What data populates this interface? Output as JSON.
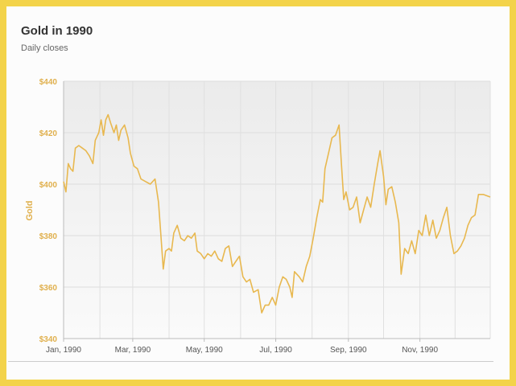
{
  "chart_data": {
    "type": "line",
    "title": "Gold in 1990",
    "subtitle": "Daily closes",
    "ylabel": "Gold",
    "xlabel": "",
    "ylim": [
      340,
      440
    ],
    "y_ticks": [
      340,
      360,
      380,
      400,
      420,
      440
    ],
    "y_tick_labels": [
      "$340",
      "$360",
      "$380",
      "$400",
      "$420",
      "$440"
    ],
    "x_ticks": [
      "Jan, 1990",
      "Mar, 1990",
      "May, 1990",
      "Jul, 1990",
      "Sep, 1990",
      "Nov, 1990"
    ],
    "x_range": [
      "1990-01-01",
      "1990-12-31"
    ],
    "grid": true,
    "line_color": "#e8b84f",
    "series": [
      {
        "name": "",
        "points": [
          [
            "1990-01-01",
            401
          ],
          [
            "1990-01-03",
            397
          ],
          [
            "1990-01-05",
            408
          ],
          [
            "1990-01-07",
            406
          ],
          [
            "1990-01-09",
            405
          ],
          [
            "1990-01-11",
            414
          ],
          [
            "1990-01-14",
            415
          ],
          [
            "1990-01-17",
            414
          ],
          [
            "1990-01-20",
            413
          ],
          [
            "1990-01-23",
            411
          ],
          [
            "1990-01-26",
            408
          ],
          [
            "1990-01-28",
            417
          ],
          [
            "1990-01-31",
            420
          ],
          [
            "1990-02-02",
            425
          ],
          [
            "1990-02-04",
            419
          ],
          [
            "1990-02-06",
            425
          ],
          [
            "1990-02-08",
            427
          ],
          [
            "1990-02-10",
            424
          ],
          [
            "1990-02-13",
            420
          ],
          [
            "1990-02-15",
            423
          ],
          [
            "1990-02-17",
            417
          ],
          [
            "1990-02-19",
            421
          ],
          [
            "1990-02-22",
            423
          ],
          [
            "1990-02-25",
            418
          ],
          [
            "1990-02-27",
            412
          ],
          [
            "1990-03-02",
            407
          ],
          [
            "1990-03-05",
            406
          ],
          [
            "1990-03-08",
            402
          ],
          [
            "1990-03-12",
            401
          ],
          [
            "1990-03-16",
            400
          ],
          [
            "1990-03-20",
            402
          ],
          [
            "1990-03-23",
            393
          ],
          [
            "1990-03-25",
            380
          ],
          [
            "1990-03-27",
            367
          ],
          [
            "1990-03-29",
            374
          ],
          [
            "1990-04-01",
            375
          ],
          [
            "1990-04-03",
            374
          ],
          [
            "1990-04-05",
            381
          ],
          [
            "1990-04-08",
            384
          ],
          [
            "1990-04-11",
            379
          ],
          [
            "1990-04-14",
            378
          ],
          [
            "1990-04-17",
            380
          ],
          [
            "1990-04-20",
            379
          ],
          [
            "1990-04-23",
            381
          ],
          [
            "1990-04-25",
            374
          ],
          [
            "1990-04-28",
            373
          ],
          [
            "1990-05-01",
            371
          ],
          [
            "1990-05-04",
            373
          ],
          [
            "1990-05-07",
            372
          ],
          [
            "1990-05-10",
            374
          ],
          [
            "1990-05-13",
            371
          ],
          [
            "1990-05-16",
            370
          ],
          [
            "1990-05-19",
            375
          ],
          [
            "1990-05-22",
            376
          ],
          [
            "1990-05-25",
            368
          ],
          [
            "1990-05-28",
            370
          ],
          [
            "1990-05-31",
            372
          ],
          [
            "1990-06-03",
            364
          ],
          [
            "1990-06-06",
            362
          ],
          [
            "1990-06-09",
            363
          ],
          [
            "1990-06-12",
            358
          ],
          [
            "1990-06-16",
            359
          ],
          [
            "1990-06-19",
            350
          ],
          [
            "1990-06-22",
            353
          ],
          [
            "1990-06-25",
            353
          ],
          [
            "1990-06-28",
            356
          ],
          [
            "1990-07-01",
            353
          ],
          [
            "1990-07-04",
            360
          ],
          [
            "1990-07-07",
            364
          ],
          [
            "1990-07-10",
            363
          ],
          [
            "1990-07-13",
            360
          ],
          [
            "1990-07-15",
            356
          ],
          [
            "1990-07-17",
            366
          ],
          [
            "1990-07-21",
            364
          ],
          [
            "1990-07-24",
            362
          ],
          [
            "1990-07-27",
            368
          ],
          [
            "1990-07-30",
            372
          ],
          [
            "1990-08-02",
            379
          ],
          [
            "1990-08-05",
            387
          ],
          [
            "1990-08-08",
            394
          ],
          [
            "1990-08-10",
            393
          ],
          [
            "1990-08-12",
            406
          ],
          [
            "1990-08-15",
            412
          ],
          [
            "1990-08-18",
            418
          ],
          [
            "1990-08-21",
            419
          ],
          [
            "1990-08-24",
            423
          ],
          [
            "1990-08-26",
            408
          ],
          [
            "1990-08-28",
            394
          ],
          [
            "1990-08-30",
            397
          ],
          [
            "1990-09-02",
            390
          ],
          [
            "1990-09-05",
            391
          ],
          [
            "1990-09-08",
            395
          ],
          [
            "1990-09-11",
            385
          ],
          [
            "1990-09-14",
            390
          ],
          [
            "1990-09-17",
            395
          ],
          [
            "1990-09-20",
            391
          ],
          [
            "1990-09-23",
            400
          ],
          [
            "1990-09-26",
            408
          ],
          [
            "1990-09-28",
            413
          ],
          [
            "1990-10-01",
            403
          ],
          [
            "1990-10-03",
            392
          ],
          [
            "1990-10-05",
            398
          ],
          [
            "1990-10-08",
            399
          ],
          [
            "1990-10-11",
            393
          ],
          [
            "1990-10-14",
            385
          ],
          [
            "1990-10-16",
            365
          ],
          [
            "1990-10-19",
            375
          ],
          [
            "1990-10-22",
            373
          ],
          [
            "1990-10-25",
            378
          ],
          [
            "1990-10-28",
            373
          ],
          [
            "1990-10-31",
            382
          ],
          [
            "1990-11-03",
            380
          ],
          [
            "1990-11-06",
            388
          ],
          [
            "1990-11-09",
            380
          ],
          [
            "1990-11-12",
            386
          ],
          [
            "1990-11-15",
            379
          ],
          [
            "1990-11-18",
            382
          ],
          [
            "1990-11-21",
            387
          ],
          [
            "1990-11-24",
            391
          ],
          [
            "1990-11-27",
            380
          ],
          [
            "1990-11-30",
            373
          ],
          [
            "1990-12-03",
            374
          ],
          [
            "1990-12-06",
            376
          ],
          [
            "1990-12-09",
            379
          ],
          [
            "1990-12-12",
            384
          ],
          [
            "1990-12-15",
            387
          ],
          [
            "1990-12-18",
            388
          ],
          [
            "1990-12-21",
            396
          ],
          [
            "1990-12-25",
            396
          ],
          [
            "1990-12-31",
            395
          ]
        ]
      }
    ]
  }
}
